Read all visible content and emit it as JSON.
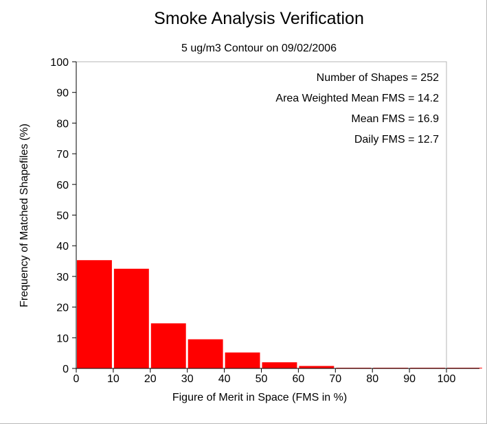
{
  "chart_data": {
    "type": "bar",
    "title": "Smoke Analysis Verification",
    "subtitle": "5 ug/m3 Contour on 09/02/2006",
    "xlabel": "Figure of Merit in Space (FMS in %)",
    "ylabel": "Frequency of Matched Shapefiles (%)",
    "xlim": [
      0,
      100
    ],
    "ylim": [
      0,
      100
    ],
    "xticks": [
      "0",
      "10",
      "20",
      "30",
      "40",
      "50",
      "60",
      "70",
      "80",
      "90",
      "100"
    ],
    "yticks": [
      "0",
      "10",
      "20",
      "30",
      "40",
      "50",
      "60",
      "70",
      "80",
      "90",
      "100"
    ],
    "bin_width": 10,
    "bins": [
      {
        "start": 0,
        "value": 35.3
      },
      {
        "start": 10,
        "value": 32.5
      },
      {
        "start": 20,
        "value": 14.7
      },
      {
        "start": 30,
        "value": 9.5
      },
      {
        "start": 40,
        "value": 5.2
      },
      {
        "start": 50,
        "value": 2.0
      },
      {
        "start": 60,
        "value": 0.8
      },
      {
        "start": 70,
        "value": 0.0
      },
      {
        "start": 80,
        "value": 0.0
      },
      {
        "start": 90,
        "value": 0.0
      },
      {
        "start": 100,
        "value": 0.0
      }
    ],
    "bar_color": "#ff0000",
    "grid": false,
    "annotations": [
      "Number of Shapes = 252",
      "Area Weighted Mean FMS = 14.2",
      "Mean FMS = 16.9",
      "Daily FMS = 12.7"
    ]
  }
}
